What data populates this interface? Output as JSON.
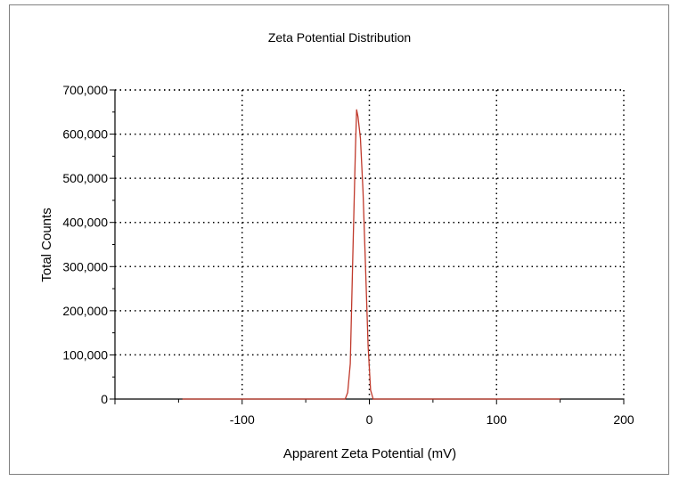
{
  "chart_data": {
    "type": "line",
    "title": "Zeta Potential Distribution",
    "xlabel": "Apparent Zeta Potential (mV)",
    "ylabel": "Total Counts",
    "xlim": [
      -200,
      200
    ],
    "ylim": [
      0,
      700000
    ],
    "xticks": [
      -100,
      0,
      100,
      200
    ],
    "xtick_labels": [
      "-100",
      "0",
      "100",
      "200"
    ],
    "yticks": [
      0,
      100000,
      200000,
      300000,
      400000,
      500000,
      600000,
      700000
    ],
    "ytick_labels": [
      "0",
      "100,000",
      "200,000",
      "300,000",
      "400,000",
      "500,000",
      "600,000",
      "700,000"
    ],
    "grid": true,
    "line_color": "#c0392b",
    "series": [
      {
        "x": [
          -147,
          -40,
          -19,
          -17,
          -15,
          -13,
          -11,
          -10,
          -9,
          -7,
          -5,
          -3,
          -1,
          1,
          3,
          20,
          150
        ],
        "values": [
          0,
          0,
          0,
          15000,
          80000,
          320000,
          560000,
          655000,
          640000,
          590000,
          470000,
          300000,
          120000,
          20000,
          0,
          0,
          0
        ]
      }
    ]
  }
}
